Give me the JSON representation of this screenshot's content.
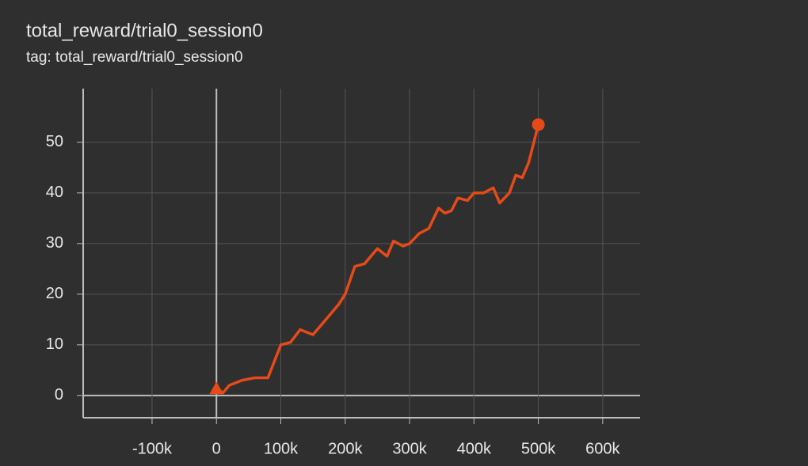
{
  "chart_data": {
    "type": "line",
    "title": "total_reward/trial0_session0",
    "subtitle": "tag: total_reward/trial0_session0",
    "x": [
      0,
      10000,
      20000,
      40000,
      60000,
      80000,
      100000,
      115000,
      130000,
      140000,
      150000,
      170000,
      190000,
      200000,
      215000,
      230000,
      250000,
      265000,
      275000,
      290000,
      300000,
      315000,
      330000,
      345000,
      355000,
      365000,
      375000,
      390000,
      400000,
      415000,
      430000,
      440000,
      455000,
      465000,
      475000,
      485000,
      500000
    ],
    "values": [
      1.5,
      0.5,
      2,
      3,
      3.5,
      3.5,
      10,
      10.5,
      13,
      12.5,
      12,
      15,
      18,
      20,
      25.5,
      26,
      29,
      27.5,
      30.5,
      29.5,
      30,
      32,
      33,
      37,
      36,
      36.5,
      39,
      38.5,
      40,
      40,
      41,
      38,
      40,
      43.5,
      43,
      46,
      53.5
    ],
    "color": "#e64a19",
    "xlim": [
      -207000,
      658000
    ],
    "xticks": [
      {
        "value": -100000,
        "label": "-100k"
      },
      0,
      {
        "value": 100000,
        "label": "100k"
      },
      {
        "value": 200000,
        "label": "200k"
      },
      {
        "value": 300000,
        "label": "300k"
      },
      {
        "value": 400000,
        "label": "400k"
      },
      {
        "value": 500000,
        "label": "500k"
      },
      {
        "value": 600000,
        "label": "600k"
      }
    ],
    "ylim": [
      -4.4,
      60.6
    ],
    "yticks": [
      0,
      10,
      20,
      30,
      40,
      50
    ],
    "grid": true
  }
}
